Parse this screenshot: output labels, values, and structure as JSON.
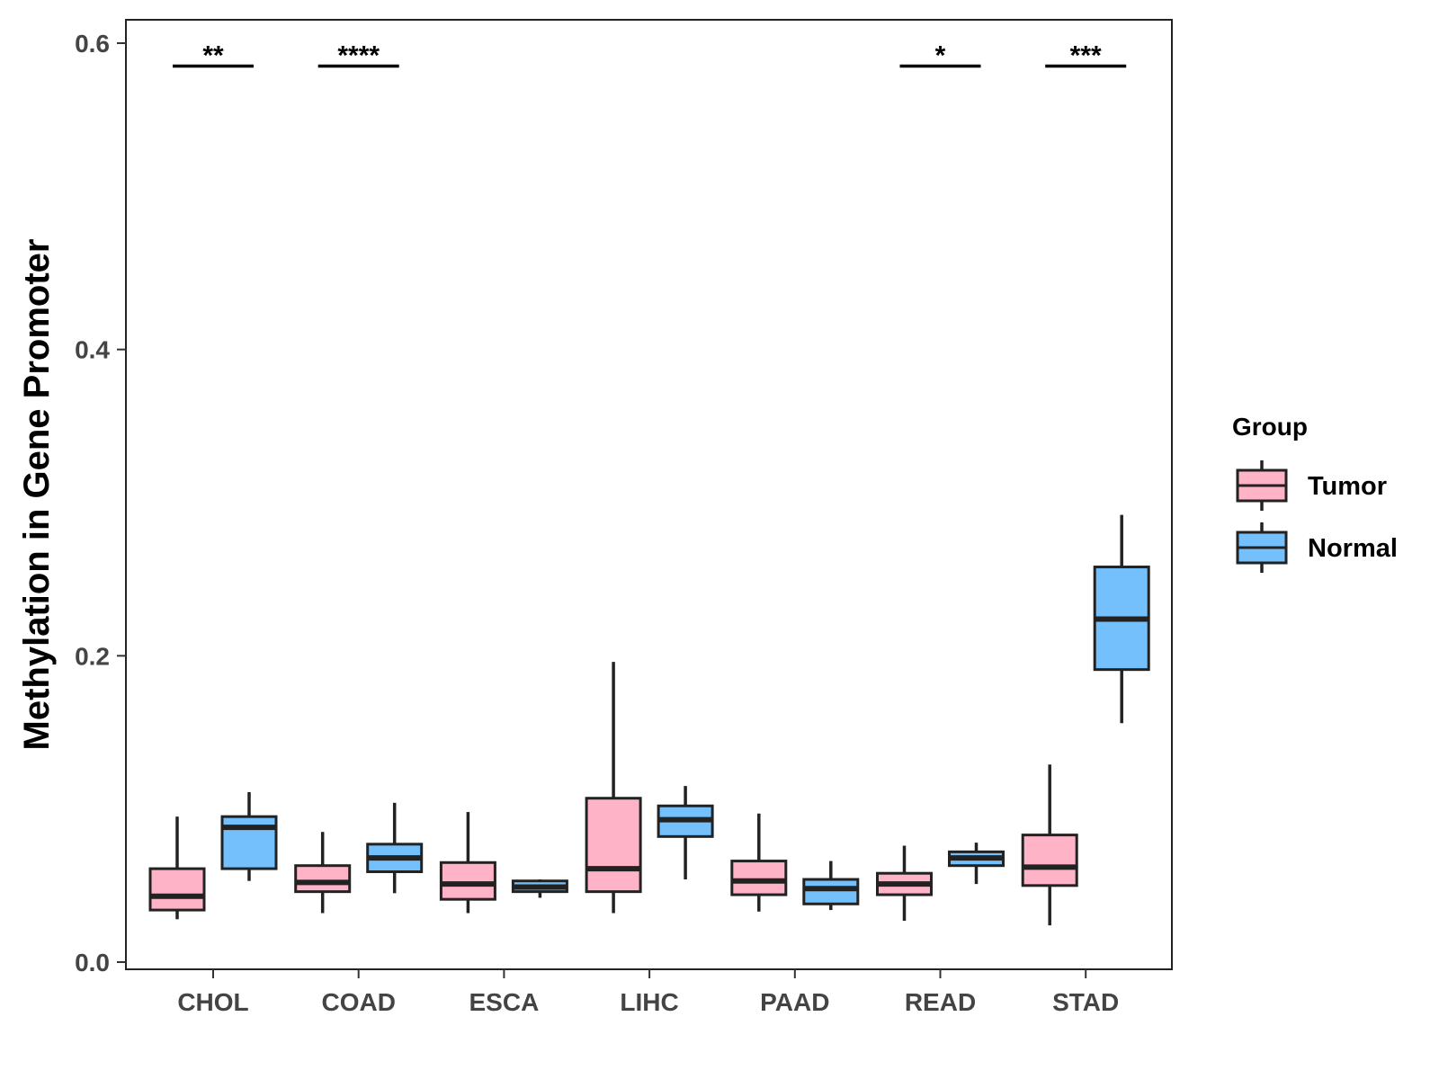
{
  "chart_data": {
    "type": "boxplot",
    "title": "",
    "xlabel": "",
    "ylabel": "Methylation in Gene Promoter",
    "ylim": [
      0.0,
      0.6
    ],
    "yticks": [
      "0.0",
      "0.2",
      "0.4",
      "0.6"
    ],
    "grid": false,
    "legend_position": "right",
    "legend": {
      "title": "Group",
      "entries": [
        {
          "name": "Tumor",
          "color": "#FFB3C6"
        },
        {
          "name": "Normal",
          "color": "#74C0FC"
        }
      ]
    },
    "categories": [
      "CHOL",
      "COAD",
      "ESCA",
      "LIHC",
      "PAAD",
      "READ",
      "STAD"
    ],
    "series": [
      {
        "name": "Tumor",
        "color": "#FFB3C6",
        "boxes": [
          {
            "min": 0.028,
            "q1": 0.034,
            "median": 0.043,
            "q3": 0.061,
            "max": 0.095
          },
          {
            "min": 0.032,
            "q1": 0.046,
            "median": 0.052,
            "q3": 0.063,
            "max": 0.085
          },
          {
            "min": 0.032,
            "q1": 0.041,
            "median": 0.051,
            "q3": 0.065,
            "max": 0.098
          },
          {
            "min": 0.032,
            "q1": 0.046,
            "median": 0.061,
            "q3": 0.107,
            "max": 0.196
          },
          {
            "min": 0.033,
            "q1": 0.044,
            "median": 0.053,
            "q3": 0.066,
            "max": 0.097
          },
          {
            "min": 0.027,
            "q1": 0.044,
            "median": 0.051,
            "q3": 0.058,
            "max": 0.076
          },
          {
            "min": 0.024,
            "q1": 0.05,
            "median": 0.062,
            "q3": 0.083,
            "max": 0.129
          }
        ]
      },
      {
        "name": "Normal",
        "color": "#74C0FC",
        "boxes": [
          {
            "min": 0.053,
            "q1": 0.061,
            "median": 0.088,
            "q3": 0.095,
            "max": 0.111
          },
          {
            "min": 0.045,
            "q1": 0.059,
            "median": 0.068,
            "q3": 0.077,
            "max": 0.104
          },
          {
            "min": 0.042,
            "q1": 0.046,
            "median": 0.049,
            "q3": 0.053,
            "max": 0.054
          },
          {
            "min": 0.054,
            "q1": 0.082,
            "median": 0.093,
            "q3": 0.102,
            "max": 0.115
          },
          {
            "min": 0.034,
            "q1": 0.038,
            "median": 0.048,
            "q3": 0.054,
            "max": 0.066
          },
          {
            "min": 0.051,
            "q1": 0.063,
            "median": 0.068,
            "q3": 0.072,
            "max": 0.078
          },
          {
            "min": 0.156,
            "q1": 0.191,
            "median": 0.224,
            "q3": 0.258,
            "max": 0.292
          }
        ]
      }
    ],
    "significance": [
      {
        "category": "CHOL",
        "label": "**",
        "y": 0.585
      },
      {
        "category": "COAD",
        "label": "****",
        "y": 0.585
      },
      {
        "category": "READ",
        "label": "*",
        "y": 0.585
      },
      {
        "category": "STAD",
        "label": "***",
        "y": 0.585
      }
    ],
    "outline_color": "#222222"
  }
}
